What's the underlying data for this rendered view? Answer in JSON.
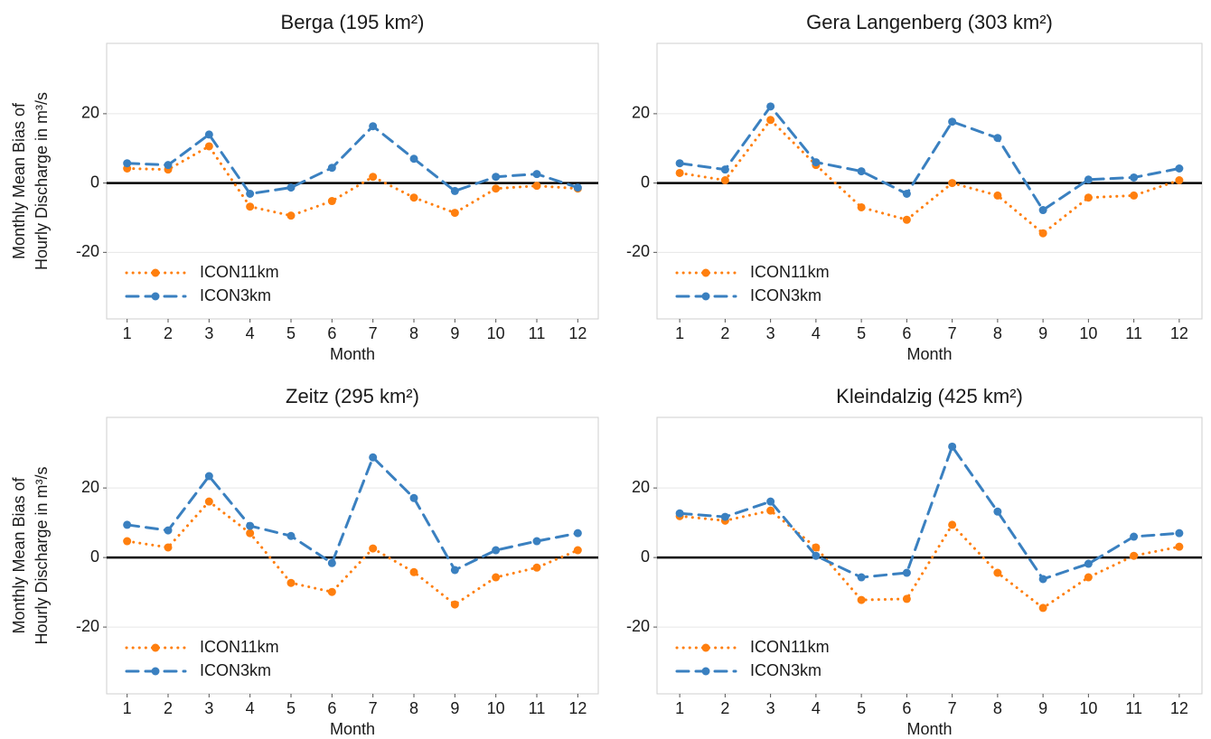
{
  "chart_data": [
    {
      "type": "line",
      "title": "Berga (195 km²)",
      "ylabel": [
        "Monthly Mean Bias of",
        "Hourly Discharge in  m³/s"
      ],
      "xlabel": "Month",
      "x": [
        1,
        2,
        3,
        4,
        5,
        6,
        7,
        8,
        9,
        10,
        11,
        12
      ],
      "xlim": [
        0.5,
        12.5
      ],
      "xticks": [
        1,
        2,
        3,
        4,
        5,
        6,
        7,
        8,
        9,
        10,
        11,
        12
      ],
      "ylim": [
        -39.2,
        40.3
      ],
      "yticks": [
        -20,
        0,
        20
      ],
      "grid": true,
      "hline": 0,
      "legend": "lower left",
      "series": [
        {
          "name": "ICON11km",
          "color": "#ff7f0e",
          "style": "dotted",
          "values": [
            4.2,
            3.9,
            10.6,
            -6.8,
            -9.4,
            -5.2,
            1.8,
            -4.2,
            -8.6,
            -1.6,
            -0.8,
            -1.6
          ]
        },
        {
          "name": "ICON3km",
          "color": "#3a80c0",
          "style": "dashed",
          "values": [
            5.7,
            5.2,
            14,
            -3.1,
            -1.3,
            4.4,
            16.4,
            7,
            -2.3,
            1.8,
            2.6,
            -1.3
          ]
        }
      ]
    },
    {
      "type": "line",
      "title": "Gera Langenberg (303 km²)",
      "xlabel": "Month",
      "x": [
        1,
        2,
        3,
        4,
        5,
        6,
        7,
        8,
        9,
        10,
        11,
        12
      ],
      "xlim": [
        0.5,
        12.5
      ],
      "xticks": [
        1,
        2,
        3,
        4,
        5,
        6,
        7,
        8,
        9,
        10,
        11,
        12
      ],
      "ylim": [
        -39.2,
        40.3
      ],
      "yticks": [
        -20,
        0,
        20
      ],
      "grid": true,
      "hline": 0,
      "legend": "lower left",
      "series": [
        {
          "name": "ICON11km",
          "color": "#ff7f0e",
          "style": "dotted",
          "values": [
            2.9,
            0.8,
            18.2,
            5.2,
            -7,
            -10.6,
            0,
            -3.6,
            -14.5,
            -4.2,
            -3.6,
            0.8
          ]
        },
        {
          "name": "ICON3km",
          "color": "#3a80c0",
          "style": "dashed",
          "values": [
            5.7,
            3.9,
            22.1,
            6,
            3.4,
            -3.1,
            17.7,
            13,
            -7.8,
            1,
            1.6,
            4.2
          ]
        }
      ]
    },
    {
      "type": "line",
      "title": "Zeitz (295 km²)",
      "ylabel": [
        "Monthly Mean Bias of",
        "Hourly Discharge in  m³/s"
      ],
      "xlabel": "Month",
      "x": [
        1,
        2,
        3,
        4,
        5,
        6,
        7,
        8,
        9,
        10,
        11,
        12
      ],
      "xlim": [
        0.5,
        12.5
      ],
      "xticks": [
        1,
        2,
        3,
        4,
        5,
        6,
        7,
        8,
        9,
        10,
        11,
        12
      ],
      "ylim": [
        -39.2,
        40.3
      ],
      "yticks": [
        -20,
        0,
        20
      ],
      "grid": true,
      "hline": 0,
      "legend": "lower left",
      "series": [
        {
          "name": "ICON11km",
          "color": "#ff7f0e",
          "style": "dotted",
          "values": [
            4.7,
            2.9,
            16.1,
            7,
            -7.3,
            -9.9,
            2.6,
            -4.2,
            -13.5,
            -5.7,
            -2.9,
            2.1
          ]
        },
        {
          "name": "ICON3km",
          "color": "#3a80c0",
          "style": "dashed",
          "values": [
            9.4,
            7.8,
            23.4,
            9.1,
            6.2,
            -1.6,
            28.8,
            17.1,
            -3.6,
            2.1,
            4.7,
            7
          ]
        }
      ]
    },
    {
      "type": "line",
      "title": "Kleindalzig (425 km²)",
      "xlabel": "Month",
      "x": [
        1,
        2,
        3,
        4,
        5,
        6,
        7,
        8,
        9,
        10,
        11,
        12
      ],
      "xlim": [
        0.5,
        12.5
      ],
      "xticks": [
        1,
        2,
        3,
        4,
        5,
        6,
        7,
        8,
        9,
        10,
        11,
        12
      ],
      "ylim": [
        -39.2,
        40.3
      ],
      "yticks": [
        -20,
        0,
        20
      ],
      "grid": true,
      "hline": 0,
      "legend": "lower left",
      "series": [
        {
          "name": "ICON11km",
          "color": "#ff7f0e",
          "style": "dotted",
          "values": [
            11.9,
            10.6,
            13.5,
            2.9,
            -12.2,
            -11.9,
            9.4,
            -4.4,
            -14.5,
            -5.7,
            0.5,
            3.1
          ]
        },
        {
          "name": "ICON3km",
          "color": "#3a80c0",
          "style": "dashed",
          "values": [
            12.7,
            11.7,
            16.1,
            0.5,
            -5.7,
            -4.4,
            31.9,
            13.2,
            -6.2,
            -1.8,
            6,
            7
          ]
        }
      ]
    }
  ]
}
